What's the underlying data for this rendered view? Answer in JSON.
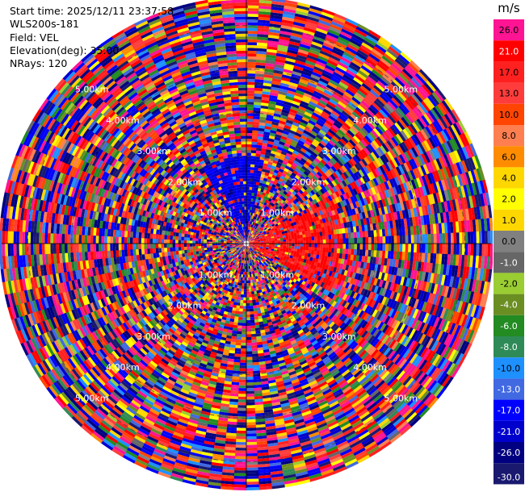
{
  "info": {
    "start_time": "Start time: 2025/12/11 23:37:58",
    "instrument": "WLS200s-181",
    "field": "Field: VEL",
    "elevation": "Elevation(deg): 35.00",
    "nrays": "NRays: 120"
  },
  "chart_data": {
    "type": "heatmap",
    "projection": "polar-ppi",
    "field": "VEL",
    "colorbar_unit": "m/s",
    "colorbar_ticks": [
      "26.0",
      "21.0",
      "17.0",
      "13.0",
      "10.0",
      "8.0",
      "6.0",
      "4.0",
      "2.0",
      "1.0",
      "0.0",
      "-1.0",
      "-2.0",
      "-4.0",
      "-6.0",
      "-8.0",
      "-10.0",
      "-13.0",
      "-17.0",
      "-21.0",
      "-26.0",
      "-30.0"
    ],
    "colorbar_colors": [
      "#ff1493",
      "#ff0000",
      "#ff2020",
      "#ff3c3c",
      "#ff4500",
      "#ff7f50",
      "#ff8c00",
      "#ffd700",
      "#ffff00",
      "#ffd700",
      "#808080",
      "#666666",
      "#9acd32",
      "#6b8e23",
      "#228b22",
      "#2e8b57",
      "#1e90ff",
      "#4169e1",
      "#0000ff",
      "#0000cd",
      "#000080",
      "#191970"
    ],
    "range_ring_labels": [
      "1.00km",
      "2.00km",
      "3.00km",
      "4.00km",
      "5.00km"
    ],
    "max_range_km": 5.6,
    "n_rays": 120,
    "coherent_sector": {
      "azimuth_start_deg": 60,
      "azimuth_end_deg": 120,
      "max_range_km": 2.2,
      "dominant_velocity": 21.0
    },
    "coherent_sector_2": {
      "azimuth_start_deg": 330,
      "azimuth_end_deg": 10,
      "max_range_km": 2.0,
      "dominant_velocity": -17.0
    },
    "noise_beyond_km": 2.2
  }
}
